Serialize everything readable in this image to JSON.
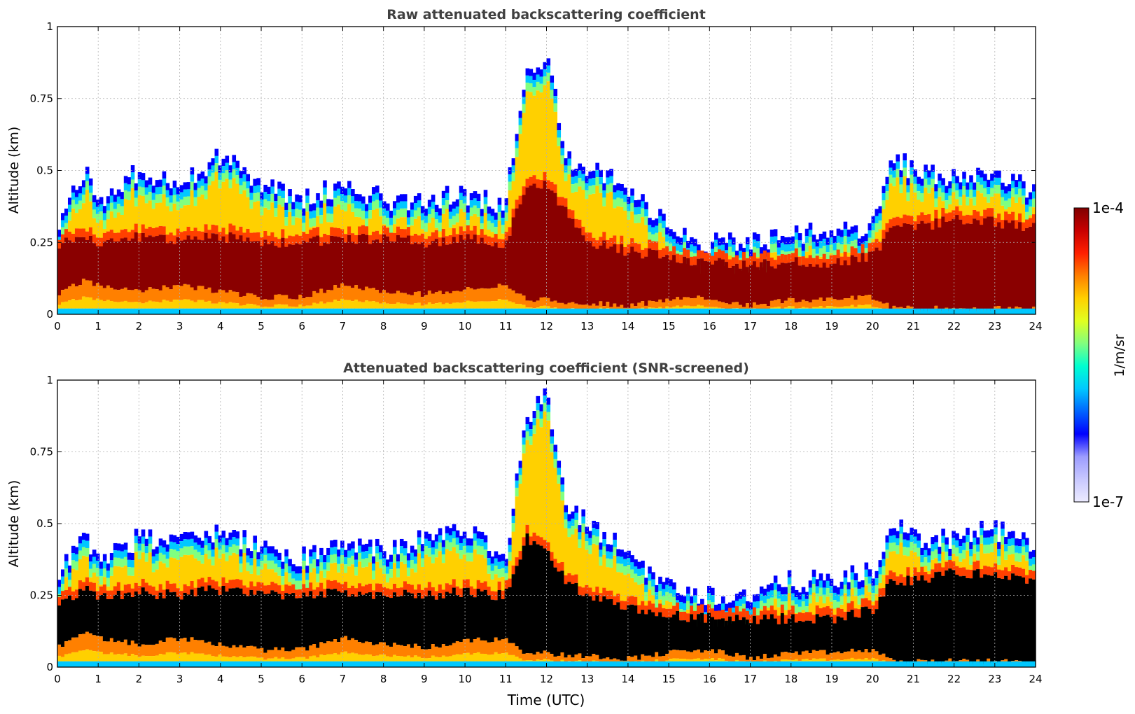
{
  "chart_data": [
    {
      "type": "heatmap",
      "title": "Raw attenuated backscattering coefficient",
      "xlabel": "",
      "ylabel": "Altitude (km)",
      "xlim": [
        0,
        24
      ],
      "ylim": [
        0,
        1
      ],
      "x_ticks": [
        "0",
        "1",
        "2",
        "3",
        "4",
        "5",
        "6",
        "7",
        "8",
        "9",
        "10",
        "11",
        "12",
        "13",
        "14",
        "15",
        "16",
        "17",
        "18",
        "19",
        "20",
        "21",
        "22",
        "23",
        "24"
      ],
      "y_ticks": [
        "0",
        "0.25",
        "0.5",
        "0.75",
        "1"
      ],
      "grid": true,
      "colormap": "jet",
      "scale": "log",
      "screened": false,
      "layer_profile": {
        "time_utc": [
          0,
          0.7,
          1,
          2,
          3,
          4,
          5,
          6,
          7,
          8,
          9,
          10,
          11,
          11.5,
          12,
          12.5,
          13,
          14,
          15,
          16,
          17,
          18,
          19,
          20,
          20.5,
          21,
          22,
          23,
          24
        ],
        "layer_top_km": [
          0.3,
          0.5,
          0.38,
          0.5,
          0.45,
          0.55,
          0.45,
          0.4,
          0.45,
          0.4,
          0.4,
          0.42,
          0.38,
          0.85,
          0.9,
          0.55,
          0.5,
          0.45,
          0.3,
          0.25,
          0.25,
          0.28,
          0.28,
          0.3,
          0.55,
          0.5,
          0.48,
          0.5,
          0.42
        ],
        "core_top_km": [
          0.24,
          0.28,
          0.25,
          0.27,
          0.26,
          0.27,
          0.25,
          0.25,
          0.26,
          0.26,
          0.25,
          0.26,
          0.25,
          0.45,
          0.45,
          0.35,
          0.25,
          0.22,
          0.2,
          0.18,
          0.17,
          0.18,
          0.18,
          0.2,
          0.3,
          0.3,
          0.33,
          0.32,
          0.3
        ],
        "core_bottom_km": [
          0.07,
          0.12,
          0.1,
          0.08,
          0.1,
          0.08,
          0.06,
          0.06,
          0.1,
          0.08,
          0.07,
          0.09,
          0.1,
          0.05,
          0.05,
          0.04,
          0.04,
          0.03,
          0.05,
          0.06,
          0.03,
          0.05,
          0.05,
          0.06,
          0.02,
          0.02,
          0.02,
          0.02,
          0.02
        ]
      }
    },
    {
      "type": "heatmap",
      "title": "Attenuated backscattering coefficient (SNR-screened)",
      "xlabel": "Time (UTC)",
      "ylabel": "Altitude (km)",
      "xlim": [
        0,
        24
      ],
      "ylim": [
        0,
        1
      ],
      "x_ticks": [
        "0",
        "1",
        "2",
        "3",
        "4",
        "5",
        "6",
        "7",
        "8",
        "9",
        "10",
        "11",
        "12",
        "13",
        "14",
        "15",
        "16",
        "17",
        "18",
        "19",
        "20",
        "21",
        "22",
        "23",
        "24"
      ],
      "y_ticks": [
        "0",
        "0.25",
        "0.5",
        "0.75",
        "1"
      ],
      "grid": true,
      "colormap": "jet",
      "scale": "log",
      "screened": true,
      "layer_profile": {
        "time_utc": [
          0,
          0.7,
          1,
          2,
          3,
          4,
          5,
          6,
          7,
          8,
          9,
          10,
          11,
          11.5,
          12,
          12.5,
          13,
          14,
          15,
          16,
          17,
          18,
          19,
          20,
          20.5,
          21,
          22,
          23,
          24
        ],
        "layer_top_km": [
          0.32,
          0.45,
          0.37,
          0.45,
          0.45,
          0.48,
          0.42,
          0.38,
          0.45,
          0.4,
          0.45,
          0.47,
          0.4,
          0.85,
          0.95,
          0.55,
          0.5,
          0.4,
          0.28,
          0.25,
          0.25,
          0.3,
          0.3,
          0.33,
          0.5,
          0.45,
          0.45,
          0.48,
          0.42
        ],
        "core_top_km": [
          0.22,
          0.27,
          0.24,
          0.26,
          0.25,
          0.27,
          0.25,
          0.25,
          0.26,
          0.25,
          0.25,
          0.26,
          0.25,
          0.45,
          0.4,
          0.3,
          0.25,
          0.2,
          0.18,
          0.17,
          0.16,
          0.17,
          0.17,
          0.2,
          0.3,
          0.3,
          0.33,
          0.32,
          0.3
        ],
        "core_bottom_km": [
          0.07,
          0.12,
          0.1,
          0.08,
          0.1,
          0.08,
          0.06,
          0.06,
          0.1,
          0.08,
          0.07,
          0.09,
          0.1,
          0.05,
          0.05,
          0.04,
          0.04,
          0.03,
          0.05,
          0.06,
          0.03,
          0.05,
          0.05,
          0.06,
          0.02,
          0.02,
          0.02,
          0.02,
          0.02
        ]
      }
    }
  ],
  "colorbar": {
    "label": "1/m/sr",
    "max_label": "1e-4",
    "min_label": "1e-7",
    "colors": [
      "#ecebff",
      "#c8c8ff",
      "#9c9cff",
      "#0000ff",
      "#0064ff",
      "#00c8ff",
      "#00ffd0",
      "#80ff80",
      "#e0ff20",
      "#ffd000",
      "#ff8000",
      "#ff2000",
      "#c80000",
      "#800000"
    ]
  }
}
